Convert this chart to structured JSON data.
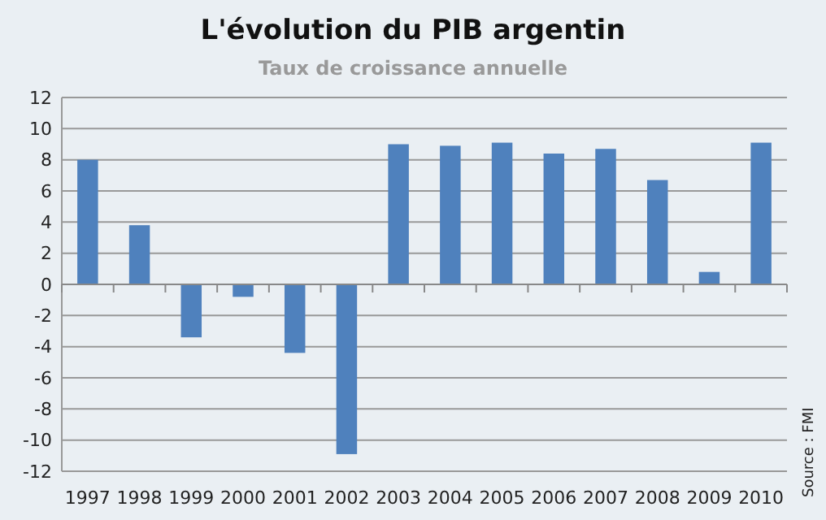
{
  "chart_data": {
    "type": "bar",
    "title": "L'évolution du PIB argentin",
    "subtitle": "Taux de croissance annuelle",
    "categories": [
      "1997",
      "1998",
      "1999",
      "2000",
      "2001",
      "2002",
      "2003",
      "2004",
      "2005",
      "2006",
      "2007",
      "2008",
      "2009",
      "2010"
    ],
    "values": [
      8.0,
      3.8,
      -3.4,
      -0.8,
      -4.4,
      -10.9,
      9.0,
      8.9,
      9.1,
      8.4,
      8.7,
      6.7,
      0.8,
      9.1
    ],
    "color": "#4f81bd",
    "ylim": [
      -12,
      12
    ],
    "yticks": [
      -12,
      -10,
      -8,
      -6,
      -4,
      -2,
      0,
      2,
      4,
      6,
      8,
      10,
      12
    ],
    "grid": "y",
    "annotations": [
      "Source : FMI"
    ]
  }
}
